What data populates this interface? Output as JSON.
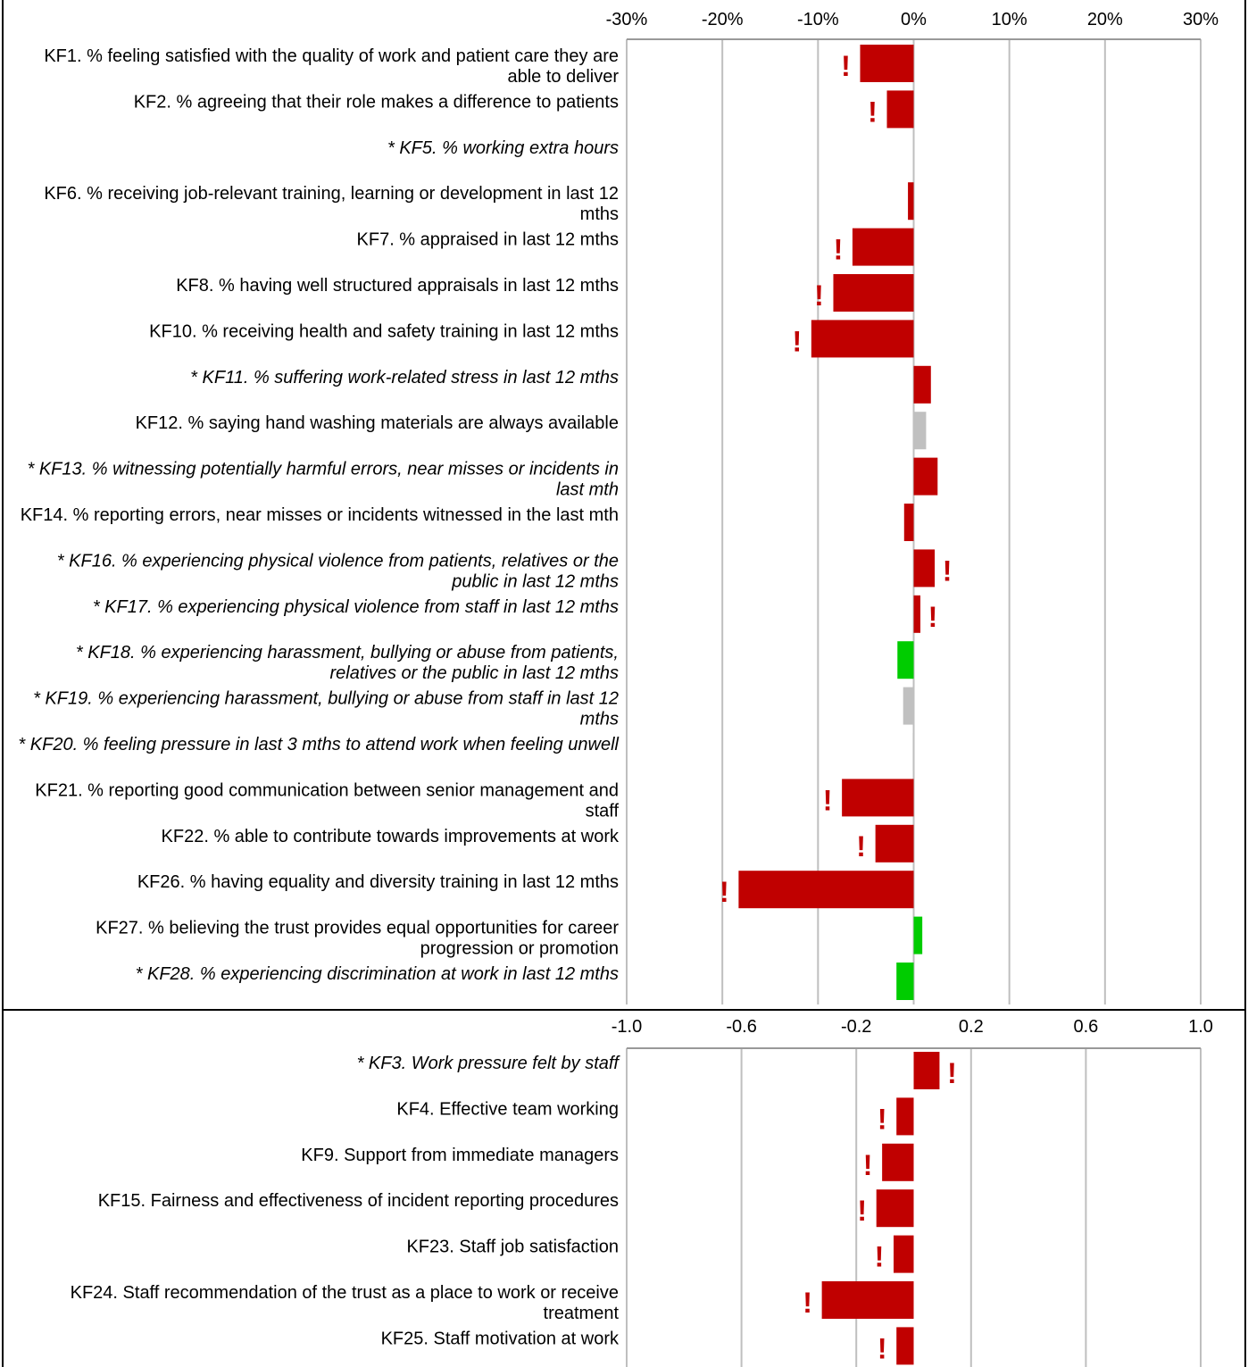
{
  "chart_data": [
    {
      "type": "hbar",
      "categories": [
        "KF1. % feeling satisfied with the quality of work and patient care they are able to deliver",
        "KF2. % agreeing that their role makes a difference to patients",
        "* KF5. % working extra hours",
        "KF6. % receiving job-relevant training, learning or development in last 12 mths",
        "KF7. % appraised in last 12 mths",
        "KF8. % having well structured appraisals in last 12 mths",
        "KF10. % receiving health and safety training in last 12 mths",
        "* KF11. % suffering work-related stress in last 12 mths",
        "KF12. % saying hand washing materials are always available",
        "* KF13. % witnessing potentially harmful errors, near misses or incidents in last mth",
        "KF14. % reporting errors, near misses or incidents witnessed in the last mth",
        "* KF16. % experiencing physical violence from patients, relatives or the public in last 12 mths",
        "* KF17. % experiencing physical violence from staff in last 12 mths",
        "* KF18. % experiencing harassment, bullying or abuse from patients, relatives or the public in last 12 mths",
        "* KF19. % experiencing harassment, bullying or abuse from staff in last 12 mths",
        "* KF20. % feeling pressure in last 3 mths to attend work when feeling unwell",
        "KF21. % reporting good communication between senior management and staff",
        "KF22. % able to contribute towards improvements at work",
        "KF26. % having equality and diversity training in last 12 mths",
        "KF27. % believing the trust provides equal opportunities for career progression or promotion",
        "* KF28. % experiencing discrimination at work in last 12 mths"
      ],
      "values": [
        -5.6,
        -2.8,
        null,
        -0.6,
        -6.4,
        -8.4,
        -10.7,
        1.8,
        1.3,
        2.5,
        -1.0,
        2.2,
        0.7,
        -1.7,
        -1.1,
        -0.1,
        -7.5,
        -4.0,
        -18.3,
        0.9,
        -1.8
      ],
      "colors": [
        "#c00000",
        "#c00000",
        null,
        "#c00000",
        "#c00000",
        "#c00000",
        "#c00000",
        "#c00000",
        "#c0c0c0",
        "#c00000",
        "#c00000",
        "#c00000",
        "#c00000",
        "#00cc00",
        "#c0c0c0",
        "#c0c0c0",
        "#c00000",
        "#c00000",
        "#c00000",
        "#00cc00",
        "#00cc00"
      ],
      "markers": [
        "!",
        "!",
        null,
        null,
        "!",
        "!",
        "!",
        null,
        null,
        null,
        null,
        "!",
        "!",
        null,
        null,
        null,
        "!",
        "!",
        "!",
        null,
        null
      ],
      "xlim": [
        -30,
        30
      ],
      "xticks": [
        {
          "value": -30,
          "label": "-30%"
        },
        {
          "value": -20,
          "label": "-20%"
        },
        {
          "value": -10,
          "label": "-10%"
        },
        {
          "value": 0,
          "label": "0%"
        },
        {
          "value": 10,
          "label": "10%"
        },
        {
          "value": 20,
          "label": "20%"
        },
        {
          "value": 30,
          "label": "30%"
        }
      ],
      "grid": true
    },
    {
      "type": "hbar",
      "categories": [
        "* KF3. Work pressure felt by staff",
        "KF4. Effective team working",
        "KF9. Support from immediate managers",
        "KF15. Fairness and effectiveness of incident reporting procedures",
        "KF23. Staff job satisfaction",
        "KF24. Staff recommendation of the trust as a place to work or receive treatment",
        "KF25. Staff motivation at work"
      ],
      "values": [
        0.09,
        -0.06,
        -0.11,
        -0.13,
        -0.07,
        -0.32,
        -0.06
      ],
      "colors": [
        "#c00000",
        "#c00000",
        "#c00000",
        "#c00000",
        "#c00000",
        "#c00000",
        "#c00000"
      ],
      "markers": [
        "!",
        "!",
        "!",
        "!",
        "!",
        "!",
        "!"
      ],
      "xlim": [
        -1,
        1
      ],
      "xticks": [
        {
          "value": -1,
          "label": "-1.0"
        },
        -0.6,
        -0.2,
        0.2,
        0.6,
        {
          "value": 1,
          "label": "1.0"
        }
      ],
      "grid": true
    }
  ]
}
